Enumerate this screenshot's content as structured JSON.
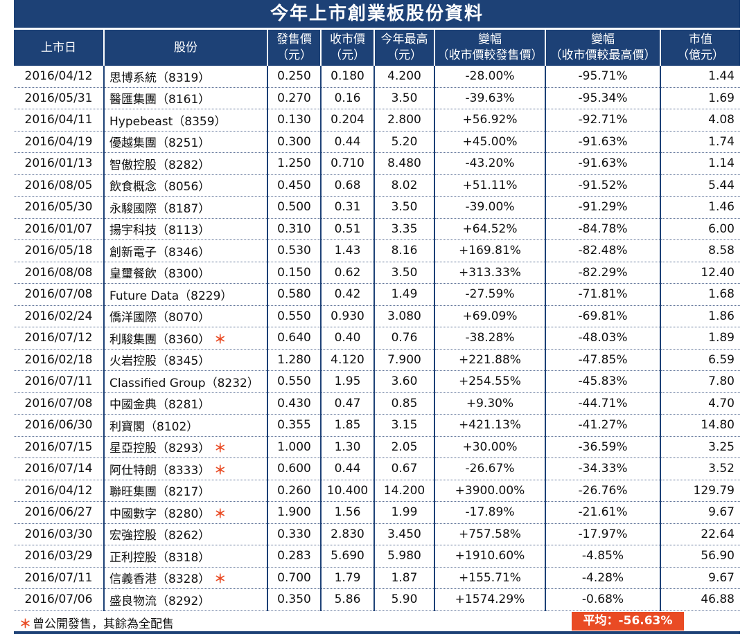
{
  "title": "今年上市創業板股份資料",
  "columns": [
    {
      "line1": "上市日",
      "line2": ""
    },
    {
      "line1": "股份",
      "line2": ""
    },
    {
      "line1": "發售價",
      "line2": "（元）"
    },
    {
      "line1": "收市價",
      "line2": "（元）"
    },
    {
      "line1": "今年最高",
      "line2": "（元）"
    },
    {
      "line1": "變幅",
      "line2": "（收市價較發售價）"
    },
    {
      "line1": "變幅",
      "line2": "（收市價較最高價）"
    },
    {
      "line1": "市值",
      "line2": "（億元）"
    }
  ],
  "rows": [
    {
      "date": "2016/04/12",
      "stock": "思博系統（8319）",
      "star": "",
      "offer": "0.250",
      "close": "0.180",
      "high": "4.200",
      "chg_offer": "-28.00%",
      "chg_high": "-95.71%",
      "cap": "1.44"
    },
    {
      "date": "2016/05/31",
      "stock": "醫匯集團（8161）",
      "star": "",
      "offer": "0.270",
      "close": "0.16",
      "high": "3.50",
      "chg_offer": "-39.63%",
      "chg_high": "-95.34%",
      "cap": "1.69"
    },
    {
      "date": "2016/04/11",
      "stock": "Hypebeast（8359）",
      "star": "",
      "offer": "0.130",
      "close": "0.204",
      "high": "2.800",
      "chg_offer": "+56.92%",
      "chg_high": "-92.71%",
      "cap": "4.08"
    },
    {
      "date": "2016/04/19",
      "stock": "優越集團（8251）",
      "star": "",
      "offer": "0.300",
      "close": "0.44",
      "high": "5.20",
      "chg_offer": "+45.00%",
      "chg_high": "-91.63%",
      "cap": "1.74"
    },
    {
      "date": "2016/01/13",
      "stock": "智傲控股（8282）",
      "star": "",
      "offer": "1.250",
      "close": "0.710",
      "high": "8.480",
      "chg_offer": "-43.20%",
      "chg_high": "-91.63%",
      "cap": "1.14"
    },
    {
      "date": "2016/08/05",
      "stock": "飲食概念（8056）",
      "star": "",
      "offer": "0.450",
      "close": "0.68",
      "high": "8.02",
      "chg_offer": "+51.11%",
      "chg_high": "-91.52%",
      "cap": "5.44"
    },
    {
      "date": "2016/05/30",
      "stock": "永駿國際（8187）",
      "star": "",
      "offer": "0.500",
      "close": "0.31",
      "high": "3.50",
      "chg_offer": "-39.00%",
      "chg_high": "-91.29%",
      "cap": "1.46"
    },
    {
      "date": "2016/01/07",
      "stock": "揚宇科技（8113）",
      "star": "",
      "offer": "0.310",
      "close": "0.51",
      "high": "3.35",
      "chg_offer": "+64.52%",
      "chg_high": "-84.78%",
      "cap": "6.00"
    },
    {
      "date": "2016/05/18",
      "stock": "創新電子（8346）",
      "star": "",
      "offer": "0.530",
      "close": "1.43",
      "high": "8.16",
      "chg_offer": "+169.81%",
      "chg_high": "-82.48%",
      "cap": "8.58"
    },
    {
      "date": "2016/08/08",
      "stock": "皇璽餐飲（8300）",
      "star": "",
      "offer": "0.150",
      "close": "0.62",
      "high": "3.50",
      "chg_offer": "+313.33%",
      "chg_high": "-82.29%",
      "cap": "12.40"
    },
    {
      "date": "2016/07/08",
      "stock": "Future Data（8229）",
      "star": "",
      "offer": "0.580",
      "close": "0.42",
      "high": "1.49",
      "chg_offer": "-27.59%",
      "chg_high": "-71.81%",
      "cap": "1.68"
    },
    {
      "date": "2016/02/24",
      "stock": "僑洋國際（8070）",
      "star": "",
      "offer": "0.550",
      "close": "0.930",
      "high": "3.080",
      "chg_offer": "+69.09%",
      "chg_high": "-69.81%",
      "cap": "1.86"
    },
    {
      "date": "2016/07/12",
      "stock": "利駿集團（8360）",
      "star": "＊",
      "offer": "0.640",
      "close": "0.40",
      "high": "0.76",
      "chg_offer": "-38.28%",
      "chg_high": "-48.03%",
      "cap": "1.89"
    },
    {
      "date": "2016/02/18",
      "stock": "火岩控股（8345）",
      "star": "",
      "offer": "1.280",
      "close": "4.120",
      "high": "7.900",
      "chg_offer": "+221.88%",
      "chg_high": "-47.85%",
      "cap": "6.59"
    },
    {
      "date": "2016/07/11",
      "stock": "Classified Group（8232）",
      "star": "",
      "offer": "0.550",
      "close": "1.95",
      "high": "3.60",
      "chg_offer": "+254.55%",
      "chg_high": "-45.83%",
      "cap": "7.80"
    },
    {
      "date": "2016/07/08",
      "stock": "中國金典（8281）",
      "star": "",
      "offer": "0.430",
      "close": "0.47",
      "high": "0.85",
      "chg_offer": "+9.30%",
      "chg_high": "-44.71%",
      "cap": "4.70"
    },
    {
      "date": "2016/06/30",
      "stock": "利寶閣（8102）",
      "star": "",
      "offer": "0.355",
      "close": "1.85",
      "high": "3.15",
      "chg_offer": "+421.13%",
      "chg_high": "-41.27%",
      "cap": "14.80"
    },
    {
      "date": "2016/07/15",
      "stock": "星亞控股（8293）",
      "star": "＊",
      "offer": "1.000",
      "close": "1.30",
      "high": "2.05",
      "chg_offer": "+30.00%",
      "chg_high": "-36.59%",
      "cap": "3.25"
    },
    {
      "date": "2016/07/14",
      "stock": "阿仕特朗（8333）",
      "star": "＊",
      "offer": "0.600",
      "close": "0.44",
      "high": "0.67",
      "chg_offer": "-26.67%",
      "chg_high": "-34.33%",
      "cap": "3.52"
    },
    {
      "date": "2016/04/12",
      "stock": "聯旺集團（8217）",
      "star": "",
      "offer": "0.260",
      "close": "10.400",
      "high": "14.200",
      "chg_offer": "+3900.00%",
      "chg_high": "-26.76%",
      "cap": "129.79"
    },
    {
      "date": "2016/06/27",
      "stock": "中國數字（8280）",
      "star": "＊",
      "offer": "1.900",
      "close": "1.56",
      "high": "1.99",
      "chg_offer": "-17.89%",
      "chg_high": "-21.61%",
      "cap": "9.67"
    },
    {
      "date": "2016/03/30",
      "stock": "宏強控股（8262）",
      "star": "",
      "offer": "0.330",
      "close": "2.830",
      "high": "3.450",
      "chg_offer": "+757.58%",
      "chg_high": "-17.97%",
      "cap": "22.64"
    },
    {
      "date": "2016/03/29",
      "stock": "正利控股（8318）",
      "star": "",
      "offer": "0.283",
      "close": "5.690",
      "high": "5.980",
      "chg_offer": "+1910.60%",
      "chg_high": "-4.85%",
      "cap": "56.90"
    },
    {
      "date": "2016/07/11",
      "stock": "信義香港（8328）",
      "star": "＊",
      "offer": "0.700",
      "close": "1.79",
      "high": "1.87",
      "chg_offer": "+155.71%",
      "chg_high": "-4.28%",
      "cap": "9.67"
    },
    {
      "date": "2016/07/06",
      "stock": "盛良物流（8292）",
      "star": "",
      "offer": "0.350",
      "close": "5.86",
      "high": "5.90",
      "chg_offer": "+1574.29%",
      "chg_high": "-0.68%",
      "cap": "46.88"
    }
  ],
  "footer": {
    "note_star": "＊",
    "note": "曾公開發售，其餘為全配售",
    "average": "平均：-56.63%"
  },
  "colors": {
    "header_bg": "#1d4176",
    "accent": "#e94b24"
  }
}
